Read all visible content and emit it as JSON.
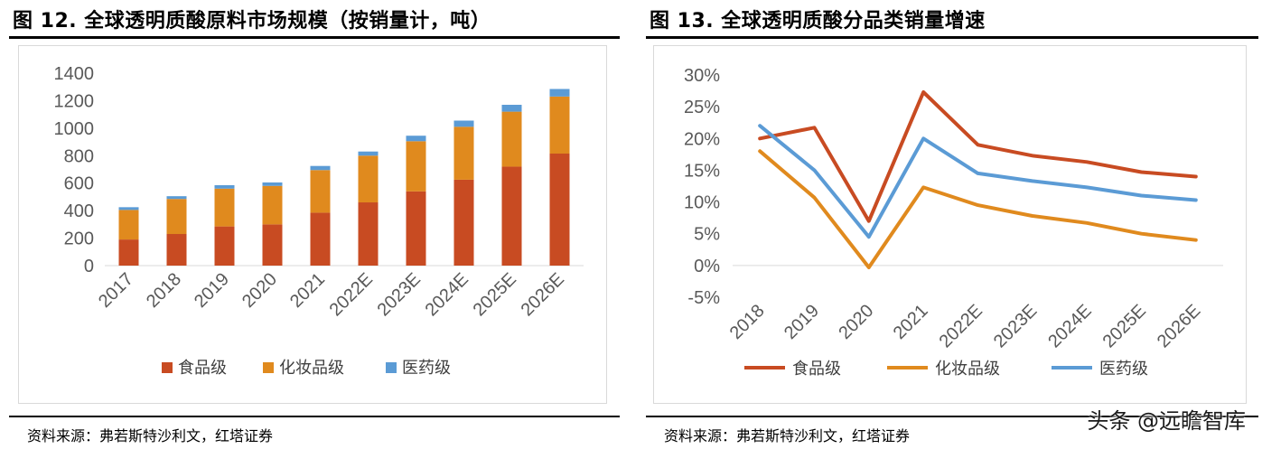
{
  "left_panel": {
    "title": "图 12. 全球透明质酸原料市场规模（按销量计，吨）",
    "source": "资料来源：弗若斯特沙利文，红塔证券"
  },
  "right_panel": {
    "title": "图 13. 全球透明质酸分品类销量增速",
    "source": "资料来源：弗若斯特沙利文，红塔证券"
  },
  "watermark": "头条 @远瞻智库",
  "chart_data": [
    {
      "type": "bar",
      "stacked": true,
      "title": "图 12. 全球透明质酸原料市场规模（按销量计，吨）",
      "categories": [
        "2017",
        "2018",
        "2019",
        "2020",
        "2021",
        "2022E",
        "2023E",
        "2024E",
        "2025E",
        "2026E"
      ],
      "series": [
        {
          "name": "食品级",
          "color": "#C84B22",
          "values": [
            190,
            230,
            285,
            300,
            385,
            460,
            540,
            625,
            720,
            815
          ]
        },
        {
          "name": "化妆品级",
          "color": "#E08A1E",
          "values": [
            215,
            255,
            275,
            280,
            310,
            340,
            365,
            385,
            400,
            415
          ]
        },
        {
          "name": "医药级",
          "color": "#5B9BD5",
          "values": [
            20,
            20,
            25,
            25,
            30,
            30,
            40,
            45,
            50,
            55
          ]
        }
      ],
      "yticks": [
        "0",
        "200",
        "400",
        "600",
        "800",
        "1000",
        "1200",
        "1400"
      ],
      "ylim": [
        0,
        1400
      ],
      "legend_position": "bottom",
      "grid": false
    },
    {
      "type": "line",
      "title": "图 13. 全球透明质酸分品类销量增速",
      "categories": [
        "2018",
        "2019",
        "2020",
        "2021",
        "2022E",
        "2023E",
        "2024E",
        "2025E",
        "2026E"
      ],
      "series": [
        {
          "name": "食品级",
          "color": "#C84B22",
          "values": [
            20.0,
            21.7,
            7.0,
            27.3,
            19.0,
            17.3,
            16.3,
            14.7,
            14.0
          ]
        },
        {
          "name": "化妆品级",
          "color": "#E08A1E",
          "values": [
            18.0,
            10.7,
            -0.3,
            12.3,
            9.5,
            7.8,
            6.7,
            5.0,
            4.0
          ]
        },
        {
          "name": "医药级",
          "color": "#5B9BD5",
          "values": [
            22.0,
            15.0,
            4.5,
            20.0,
            14.5,
            13.3,
            12.3,
            11.0,
            10.3
          ]
        }
      ],
      "yticks": [
        "-5%",
        "0%",
        "5%",
        "10%",
        "15%",
        "20%",
        "25%",
        "30%"
      ],
      "ylim": [
        -5,
        30
      ],
      "legend_position": "bottom",
      "grid": false
    }
  ]
}
